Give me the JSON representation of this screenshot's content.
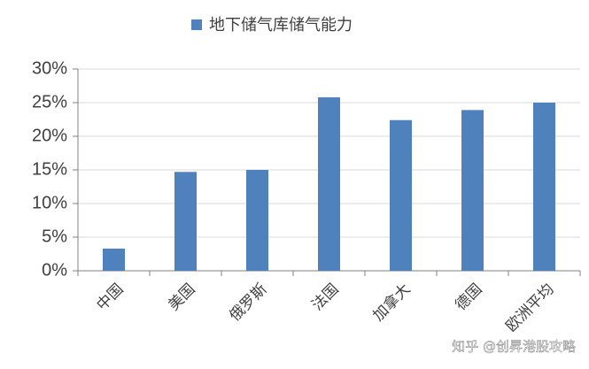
{
  "chart_data": {
    "type": "bar",
    "categories": [
      "中国",
      "美国",
      "俄罗斯",
      "法国",
      "加拿大",
      "德国",
      "欧洲平均"
    ],
    "series": [
      {
        "name": "地下储气库储气能力",
        "color": "#4f81bd",
        "values": [
          3.3,
          14.7,
          15.0,
          25.8,
          22.4,
          23.9,
          25.0
        ]
      }
    ],
    "ylim": [
      0,
      30
    ],
    "yticks": [
      {
        "value": 0,
        "label": "0%"
      },
      {
        "value": 5,
        "label": "5%"
      },
      {
        "value": 10,
        "label": "10%"
      },
      {
        "value": 15,
        "label": "15%"
      },
      {
        "value": 20,
        "label": "20%"
      },
      {
        "value": 25,
        "label": "25%"
      },
      {
        "value": 30,
        "label": "30%"
      }
    ],
    "grid": true,
    "legend": "top",
    "watermark": "知乎 @创昇港股攻略"
  }
}
